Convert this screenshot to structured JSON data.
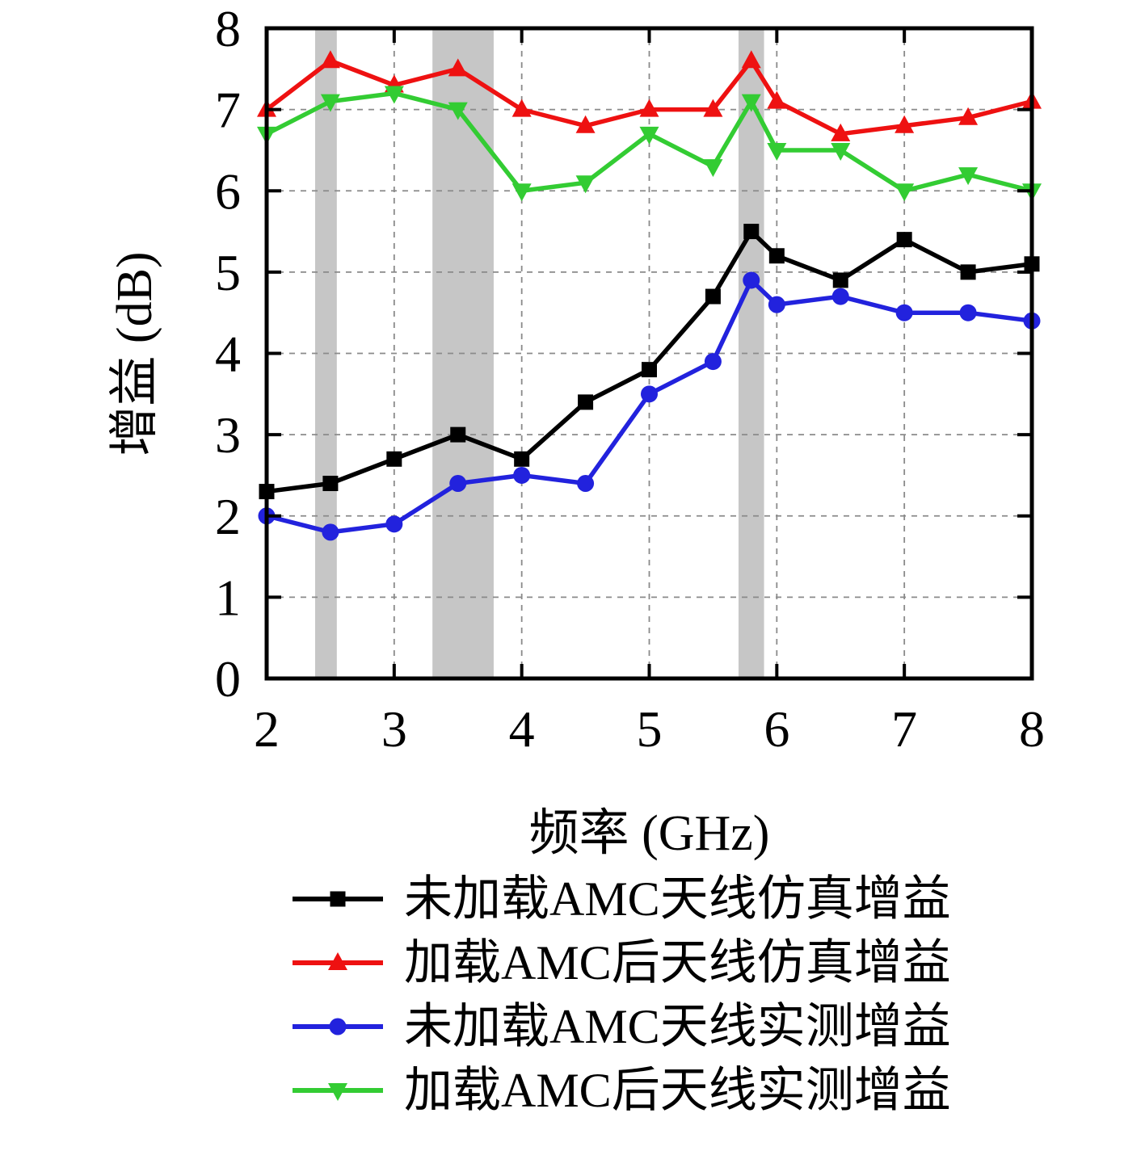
{
  "chart_data": {
    "type": "line",
    "title": "",
    "xlabel": "频率 (GHz)",
    "ylabel": "增益 (dB)",
    "xlim": [
      2,
      8
    ],
    "ylim": [
      0,
      8
    ],
    "x_ticks": [
      2,
      3,
      4,
      5,
      6,
      7,
      8
    ],
    "y_ticks": [
      0,
      1,
      2,
      3,
      4,
      5,
      6,
      7,
      8
    ],
    "grid": "dashed",
    "legend_position": "below",
    "band_color": "#c6c6c6",
    "bands": [
      {
        "x0": 2.38,
        "x1": 2.55
      },
      {
        "x0": 3.3,
        "x1": 3.78
      },
      {
        "x0": 5.7,
        "x1": 5.9
      }
    ],
    "x": [
      2,
      2.5,
      3,
      3.5,
      4,
      4.5,
      5,
      5.5,
      5.8,
      6,
      6.5,
      7,
      7.5,
      8
    ],
    "series": [
      {
        "name": "未加载AMC天线仿真增益",
        "color": "#000000",
        "marker": "square",
        "values": [
          2.3,
          2.4,
          2.7,
          3.0,
          2.7,
          3.4,
          3.8,
          4.7,
          5.5,
          5.2,
          4.9,
          5.4,
          5.0,
          5.1
        ]
      },
      {
        "name": "加载AMC后天线仿真增益",
        "color": "#ee1111",
        "marker": "triangle-up",
        "values": [
          7.0,
          7.6,
          7.3,
          7.5,
          7.0,
          6.8,
          7.0,
          7.0,
          7.6,
          7.1,
          6.7,
          6.8,
          6.9,
          7.1
        ]
      },
      {
        "name": "未加载AMC天线实测增益",
        "color": "#2222dd",
        "marker": "circle",
        "values": [
          2.0,
          1.8,
          1.9,
          2.4,
          2.5,
          2.4,
          3.5,
          3.9,
          4.9,
          4.6,
          4.7,
          4.5,
          4.5,
          4.4
        ]
      },
      {
        "name": "加载AMC后天线实测增益",
        "color": "#33cc33",
        "marker": "triangle-down",
        "values": [
          6.7,
          7.1,
          7.2,
          7.0,
          6.0,
          6.1,
          6.7,
          6.3,
          7.1,
          6.5,
          6.5,
          6.0,
          6.2,
          6.0
        ]
      }
    ]
  }
}
